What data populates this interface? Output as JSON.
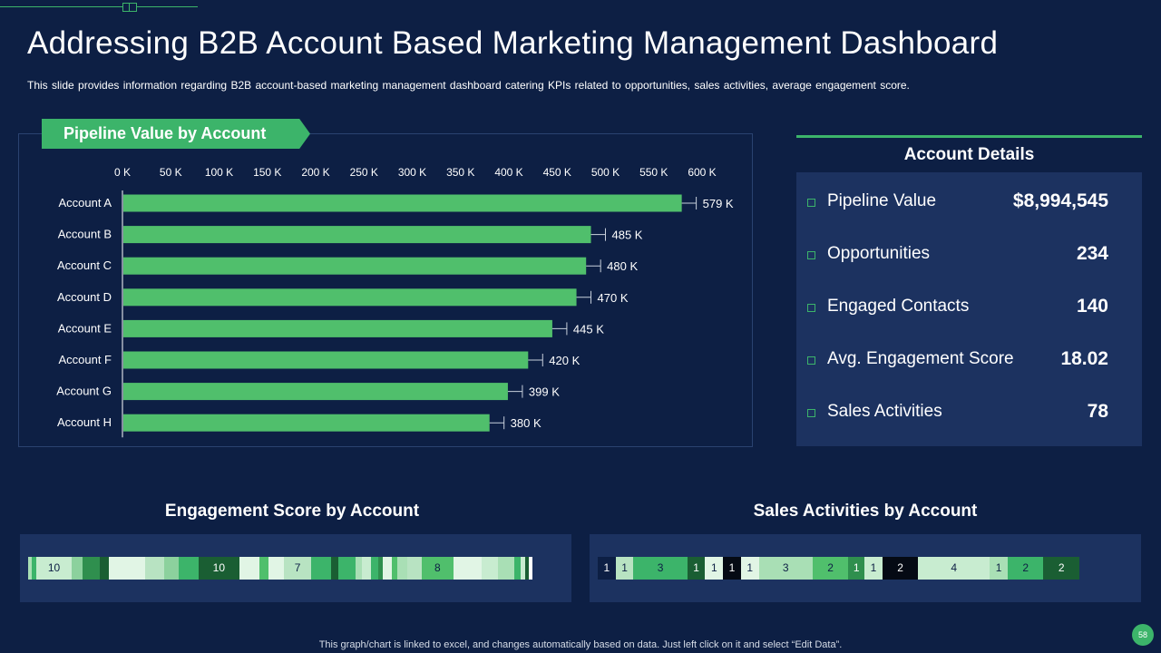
{
  "page": {
    "title": "Addressing B2B Account Based Marketing Management Dashboard",
    "subtitle": "This slide provides information regarding B2B account-based marketing management dashboard catering KPIs related to opportunities, sales activities, average engagement score.",
    "footer": "This graph/chart is linked to excel, and changes automatically based on data. Just left click on it and select “Edit Data”.",
    "page_number": "58"
  },
  "colors": {
    "accent": "#3cb46a",
    "background": "#0d1f44",
    "panel": "#1c3260"
  },
  "chart_data": {
    "type": "bar",
    "orientation": "horizontal",
    "title": "Pipeline Value by Account",
    "categories": [
      "Account  A",
      "Account  B",
      "Account  C",
      "Account  D",
      "Account  E",
      "Account  F",
      "Account  G",
      "Account  H"
    ],
    "values": [
      579,
      485,
      480,
      470,
      445,
      420,
      399,
      380
    ],
    "value_labels": [
      "579 K",
      "485 K",
      "480 K",
      "470 K",
      "445 K",
      "420 K",
      "399 K",
      "380 K"
    ],
    "error": 15,
    "xlim": [
      0,
      600
    ],
    "xticks": [
      0,
      50,
      100,
      150,
      200,
      250,
      300,
      350,
      400,
      450,
      500,
      550,
      600
    ],
    "xtick_labels": [
      "0 K",
      "50 K",
      "100 K",
      "150 K",
      "200 K",
      "250 K",
      "300 K",
      "350 K",
      "400 K",
      "450 K",
      "500 K",
      "550 K",
      "600 K"
    ],
    "axis_position": "top",
    "bar_color": "#50bf6c",
    "grid": false
  },
  "account_details": {
    "title": "Account Details",
    "items": [
      {
        "label": "Pipeline Value",
        "value": "$8,994,545"
      },
      {
        "label": "Opportunities",
        "value": "234"
      },
      {
        "label": "Engaged Contacts",
        "value": "140"
      },
      {
        "label": "Avg. Engagement Score",
        "value": "18.02"
      },
      {
        "label": "Sales Activities",
        "value": "78"
      }
    ]
  },
  "engagement_strip": {
    "title": "Engagement Score by Account",
    "segments": [
      {
        "units": 4,
        "color": "#a9dfb5",
        "label": ""
      },
      {
        "units": 4,
        "color": "#3cb46a",
        "label": ""
      },
      {
        "units": 36,
        "color": "#c8ecd0",
        "label": "10"
      },
      {
        "units": 11,
        "color": "#8cd19d",
        "label": ""
      },
      {
        "units": 17,
        "color": "#2f8f4e",
        "label": ""
      },
      {
        "units": 9,
        "color": "#1a5e33",
        "label": ""
      },
      {
        "units": 36,
        "color": "#e1f5e5",
        "label": ""
      },
      {
        "units": 20,
        "color": "#b8e3c2",
        "label": ""
      },
      {
        "units": 14,
        "color": "#8cd19d",
        "label": ""
      },
      {
        "units": 20,
        "color": "#3cb46a",
        "label": ""
      },
      {
        "units": 41,
        "color": "#1a5e33",
        "label": "10"
      },
      {
        "units": 20,
        "color": "#e1f5e5",
        "label": ""
      },
      {
        "units": 9,
        "color": "#50bf6c",
        "label": ""
      },
      {
        "units": 16,
        "color": "#e1f5e5",
        "label": ""
      },
      {
        "units": 27,
        "color": "#b8e3c2",
        "label": "7"
      },
      {
        "units": 20,
        "color": "#3cb46a",
        "label": ""
      },
      {
        "units": 7,
        "color": "#1a5e33",
        "label": ""
      },
      {
        "units": 18,
        "color": "#3cb46a",
        "label": ""
      },
      {
        "units": 6,
        "color": "#a9dfb5",
        "label": ""
      },
      {
        "units": 9,
        "color": "#c8ecd0",
        "label": ""
      },
      {
        "units": 7,
        "color": "#3cb46a",
        "label": ""
      },
      {
        "units": 5,
        "color": "#2f8f4e",
        "label": ""
      },
      {
        "units": 9,
        "color": "#e1f5e5",
        "label": ""
      },
      {
        "units": 6,
        "color": "#50bf6c",
        "label": ""
      },
      {
        "units": 10,
        "color": "#a9dfb5",
        "label": ""
      },
      {
        "units": 14,
        "color": "#b8e3c2",
        "label": ""
      },
      {
        "units": 32,
        "color": "#50bf6c",
        "label": "8"
      },
      {
        "units": 28,
        "color": "#e1f5e5",
        "label": ""
      },
      {
        "units": 17,
        "color": "#c8ecd0",
        "label": ""
      },
      {
        "units": 16,
        "color": "#a9dfb5",
        "label": ""
      },
      {
        "units": 6,
        "color": "#3cb46a",
        "label": ""
      },
      {
        "units": 5,
        "color": "#c8ecd0",
        "label": ""
      },
      {
        "units": 4,
        "color": "#1a5e33",
        "label": ""
      },
      {
        "units": 3,
        "color": "#ffffff",
        "label": ""
      }
    ]
  },
  "sales_strip": {
    "title": "Sales Activities by Account",
    "segments": [
      {
        "units": 1,
        "color": "#0d1f44",
        "label": "1"
      },
      {
        "units": 1,
        "color": "#b8e3c2",
        "label": "1"
      },
      {
        "units": 3,
        "color": "#3cb46a",
        "label": "3"
      },
      {
        "units": 1,
        "color": "#1a5e33",
        "label": "1"
      },
      {
        "units": 1,
        "color": "#e1f5e5",
        "label": "1"
      },
      {
        "units": 1,
        "color": "#050a14",
        "label": "1"
      },
      {
        "units": 1,
        "color": "#e1f5e5",
        "label": "1"
      },
      {
        "units": 3,
        "color": "#a9dfb5",
        "label": "3"
      },
      {
        "units": 2,
        "color": "#50bf6c",
        "label": "2"
      },
      {
        "units": 0.9,
        "color": "#2f8f4e",
        "label": "1"
      },
      {
        "units": 1,
        "color": "#c8ecd0",
        "label": "1"
      },
      {
        "units": 2,
        "color": "#050a14",
        "label": "2"
      },
      {
        "units": 4,
        "color": "#c8ecd0",
        "label": "4"
      },
      {
        "units": 1,
        "color": "#a9dfb5",
        "label": "1"
      },
      {
        "units": 2,
        "color": "#3cb46a",
        "label": "2"
      },
      {
        "units": 2,
        "color": "#1a5e33",
        "label": "2"
      }
    ]
  }
}
